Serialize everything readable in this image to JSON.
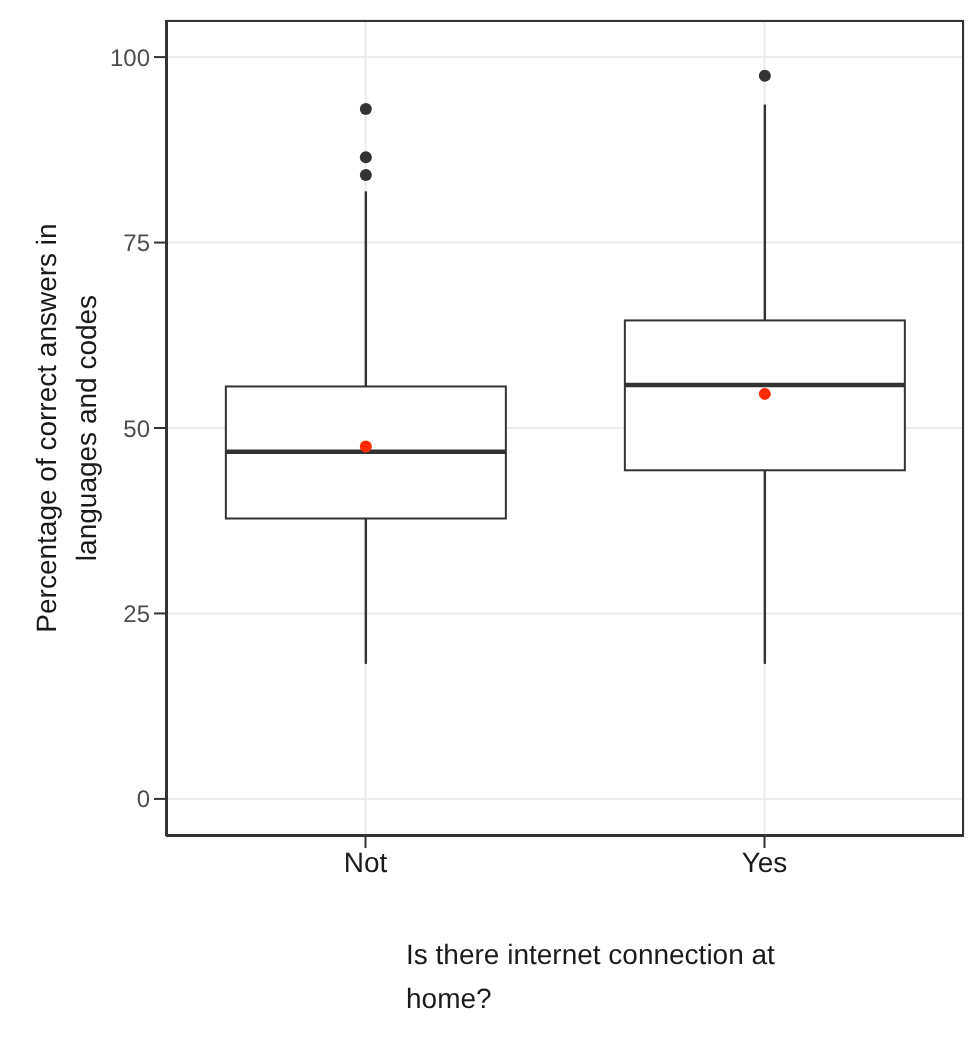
{
  "chart_data": {
    "type": "box",
    "xlabel": "Is there internet connection at home?",
    "ylabel": "Percentage of correct answers in languages and codes",
    "categories": [
      "Not",
      "Yes"
    ],
    "series": [
      {
        "color": "#333333",
        "boxes": [
          {
            "low": 18.2,
            "q1": 37.8,
            "median": 46.8,
            "q3": 55.6,
            "high": 81.9,
            "outliers": [
              84.1,
              86.5,
              93.0
            ]
          },
          {
            "low": 18.2,
            "q1": 44.3,
            "median": 55.8,
            "q3": 64.5,
            "high": 93.6,
            "outliers": [
              97.5
            ]
          }
        ]
      },
      {
        "type": "scatter",
        "color": "#ff2a00",
        "x": [
          "Not",
          "Yes"
        ],
        "values": [
          47.5,
          54.6
        ]
      }
    ],
    "ylim": [
      -5,
      105
    ],
    "yticks": [
      0,
      25,
      50,
      75,
      100
    ],
    "grid": true
  }
}
